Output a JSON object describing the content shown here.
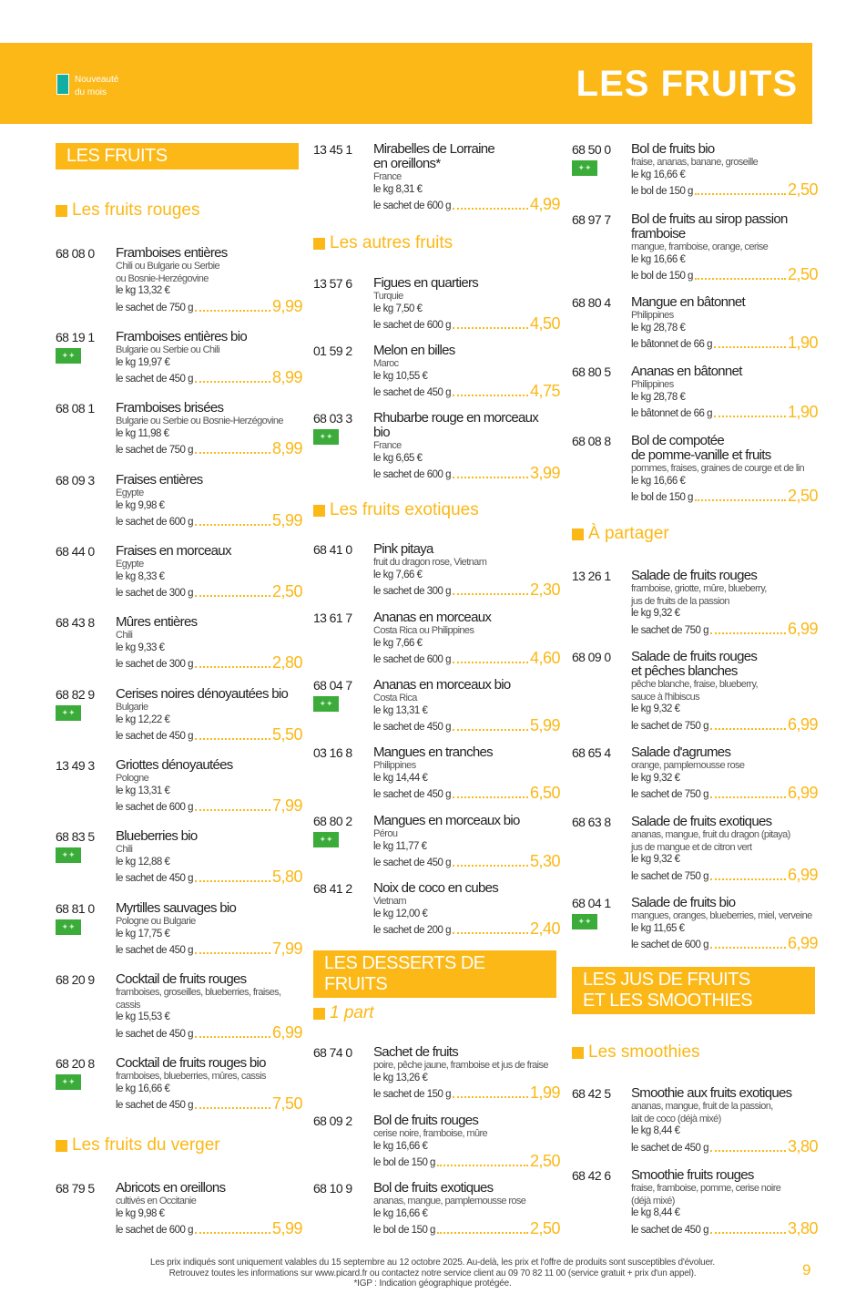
{
  "header": {
    "legend": "Nouveauté\ndu mois",
    "title": "LES FRUITS",
    "legend_color": "#10aea4",
    "accent": "#fbb816"
  },
  "columns": [
    {
      "blocks": [
        {
          "type": "banner",
          "text": "LES FRUITS"
        },
        {
          "type": "section",
          "text": "Les fruits rouges"
        },
        {
          "type": "item",
          "code": "68 08 0",
          "name": "Framboises entières",
          "details": [
            "Chili ou Bulgarie ou Serbie",
            "ou Bosnie-Herzégovine"
          ],
          "kg": "le kg 13,32 €",
          "unit": "le sachet de 750 g",
          "price": "9,99"
        },
        {
          "type": "item",
          "code": "68 19 1",
          "bio": true,
          "name": "Framboises entières bio",
          "details": [
            "Bulgarie ou Serbie ou Chili"
          ],
          "kg": "le kg 19,97 €",
          "unit": "le sachet de 450 g",
          "price": "8,99"
        },
        {
          "type": "item",
          "code": "68 08 1",
          "name": "Framboises brisées",
          "details": [
            "Bulgarie ou Serbie ou Bosnie-Herzégovine"
          ],
          "kg": "le kg 11,98 €",
          "unit": "le sachet de 750 g",
          "price": "8,99"
        },
        {
          "type": "item",
          "code": "68 09 3",
          "name": "Fraises entières",
          "details": [
            "Egypte"
          ],
          "kg": "le kg 9,98 €",
          "unit": "le sachet de 600 g",
          "price": "5,99"
        },
        {
          "type": "item",
          "code": "68 44 0",
          "name": "Fraises en morceaux",
          "details": [
            "Egypte"
          ],
          "kg": "le kg 8,33 €",
          "unit": "le sachet de 300 g",
          "price": "2,50"
        },
        {
          "type": "item",
          "code": "68 43 8",
          "name": "Mûres entières",
          "details": [
            "Chili"
          ],
          "kg": "le kg 9,33 €",
          "unit": "le sachet de 300 g",
          "price": "2,80"
        },
        {
          "type": "item",
          "code": "68 82 9",
          "bio": true,
          "name": "Cerises noires dénoyautées bio",
          "details": [
            "Bulgarie"
          ],
          "kg": "le kg 12,22 €",
          "unit": "le sachet de 450 g",
          "price": "5,50"
        },
        {
          "type": "item",
          "code": "13 49 3",
          "name": "Griottes dénoyautées",
          "details": [
            "Pologne"
          ],
          "kg": "le kg 13,31 €",
          "unit": "le sachet de 600 g",
          "price": "7,99"
        },
        {
          "type": "item",
          "code": "68 83 5",
          "bio": true,
          "name": "Blueberries bio",
          "details": [
            "Chili"
          ],
          "kg": "le kg 12,88 €",
          "unit": "le sachet de 450 g",
          "price": "5,80"
        },
        {
          "type": "item",
          "code": "68 81 0",
          "bio": true,
          "name": "Myrtilles sauvages bio",
          "details": [
            "Pologne ou Bulgarie"
          ],
          "kg": "le kg 17,75 €",
          "unit": "le sachet de 450 g",
          "price": "7,99"
        },
        {
          "type": "item",
          "code": "68 20 9",
          "name": "Cocktail de fruits rouges",
          "details": [
            "framboises, groseilles, blueberries, fraises,",
            "cassis"
          ],
          "kg": "le kg 15,53 €",
          "unit": "le sachet de 450 g",
          "price": "6,99"
        },
        {
          "type": "item",
          "code": "68 20 8",
          "bio": true,
          "name": "Cocktail de fruits rouges bio",
          "details": [
            "framboises, blueberries, mûres, cassis"
          ],
          "kg": "le kg 16,66 €",
          "unit": "le sachet de 450 g",
          "price": "7,50"
        },
        {
          "type": "section",
          "text": "Les fruits du verger"
        },
        {
          "type": "item",
          "code": "68 79 5",
          "name": "Abricots en oreillons",
          "details": [
            "cultivés en Occitanie"
          ],
          "kg": "le kg 9,98 €",
          "unit": "le sachet de 600 g",
          "price": "5,99"
        }
      ]
    },
    {
      "blocks": [
        {
          "type": "item",
          "code": "13 45 1",
          "name": "Mirabelles de Lorraine\nen oreillons*",
          "details": [
            "France"
          ],
          "kg": "le kg 8,31 €",
          "unit": "le sachet de 600 g",
          "price": "4,99"
        },
        {
          "type": "section",
          "text": "Les autres fruits"
        },
        {
          "type": "item",
          "code": "13 57 6",
          "name": "Figues en quartiers",
          "details": [
            "Turquie"
          ],
          "kg": "le kg 7,50 €",
          "unit": "le sachet de 600 g",
          "price": "4,50"
        },
        {
          "type": "item",
          "code": "01 59 2",
          "name": "Melon en billes",
          "details": [
            "Maroc"
          ],
          "kg": "le kg 10,55 €",
          "unit": "le sachet de 450 g",
          "price": "4,75"
        },
        {
          "type": "item",
          "code": "68 03 3",
          "bio": true,
          "name": "Rhubarbe rouge en morceaux\nbio",
          "details": [
            "France"
          ],
          "kg": "le kg 6,65 €",
          "unit": "le sachet de 600 g",
          "price": "3,99"
        },
        {
          "type": "section",
          "text": "Les fruits exotiques"
        },
        {
          "type": "item",
          "code": "68 41 0",
          "name": "Pink pitaya",
          "details": [
            "fruit du dragon rose, Vietnam"
          ],
          "kg": "le kg 7,66 €",
          "unit": "le sachet de 300 g",
          "price": "2,30"
        },
        {
          "type": "item",
          "code": "13 61 7",
          "name": "Ananas en morceaux",
          "details": [
            "Costa Rica ou Philippines"
          ],
          "kg": "le kg 7,66 €",
          "unit": "le sachet de 600 g",
          "price": "4,60"
        },
        {
          "type": "item",
          "code": "68 04 7",
          "bio": true,
          "name": "Ananas en morceaux bio",
          "details": [
            "Costa Rica"
          ],
          "kg": "le kg 13,31 €",
          "unit": "le sachet de 450 g",
          "price": "5,99"
        },
        {
          "type": "item",
          "code": "03 16 8",
          "name": "Mangues en tranches",
          "details": [
            "Philippines"
          ],
          "kg": "le kg 14,44 €",
          "unit": "le sachet de 450 g",
          "price": "6,50"
        },
        {
          "type": "item",
          "code": "68 80 2",
          "bio": true,
          "name": "Mangues en morceaux bio",
          "details": [
            "Pérou"
          ],
          "kg": "le kg 11,77 €",
          "unit": "le sachet de 450 g",
          "price": "5,30"
        },
        {
          "type": "item",
          "code": "68 41 2",
          "name": "Noix de coco en cubes",
          "details": [
            "Vietnam"
          ],
          "kg": "le kg 12,00 €",
          "unit": "le sachet de 200 g",
          "price": "2,40"
        },
        {
          "type": "banner",
          "text": "LES DESSERTS DE FRUITS"
        },
        {
          "type": "section",
          "text": "1 part",
          "italic": true
        },
        {
          "type": "item",
          "code": "68 74 0",
          "name": "Sachet de fruits",
          "details": [
            "poire, pêche jaune, framboise et jus de fraise"
          ],
          "kg": "le kg 13,26 €",
          "unit": "le sachet de 150 g",
          "price": "1,99"
        },
        {
          "type": "item",
          "code": "68 09 2",
          "name": "Bol de fruits rouges",
          "details": [
            "cerise noire, framboise, mûre"
          ],
          "kg": "le kg 16,66 €",
          "unit": "le bol de 150 g",
          "price": "2,50"
        },
        {
          "type": "item",
          "code": "68 10 9",
          "name": "Bol de fruits exotiques",
          "details": [
            "ananas, mangue, pamplemousse rose"
          ],
          "kg": "le kg 16,66 €",
          "unit": "le bol de 150 g",
          "price": "2,50"
        }
      ]
    },
    {
      "blocks": [
        {
          "type": "item",
          "code": "68 50 0",
          "bio": true,
          "name": "Bol de fruits bio",
          "details": [
            "fraise, ananas, banane, groseille"
          ],
          "kg": "le kg 16,66 €",
          "unit": "le bol de 150 g",
          "price": "2,50"
        },
        {
          "type": "item",
          "code": "68 97 7",
          "name": "Bol de fruits au sirop passion\nframboise",
          "details": [
            "mangue, framboise, orange, cerise"
          ],
          "kg": "le kg 16,66 €",
          "unit": "le bol de 150 g",
          "price": "2,50"
        },
        {
          "type": "item",
          "code": "68 80 4",
          "name": "Mangue en bâtonnet",
          "details": [
            "Philippines"
          ],
          "kg": "le kg 28,78 €",
          "unit": "le bâtonnet de 66 g",
          "price": "1,90"
        },
        {
          "type": "item",
          "code": "68 80 5",
          "name": "Ananas en bâtonnet",
          "details": [
            "Philippines"
          ],
          "kg": "le kg 28,78 €",
          "unit": "le bâtonnet de 66 g",
          "price": "1,90"
        },
        {
          "type": "item",
          "code": "68 08 8",
          "name": "Bol de compotée\nde pomme-vanille et fruits",
          "details": [
            "pommes, fraises, graines de courge et de lin"
          ],
          "kg": "le kg 16,66 €",
          "unit": "le bol de 150 g",
          "price": "2,50"
        },
        {
          "type": "section",
          "text": "À partager"
        },
        {
          "type": "item",
          "code": "13 26 1",
          "name": "Salade de fruits rouges",
          "details": [
            "framboise, griotte, mûre, blueberry,",
            "jus de fruits de la passion"
          ],
          "kg": "le kg 9,32 €",
          "unit": "le sachet de 750 g",
          "price": "6,99"
        },
        {
          "type": "item",
          "code": "68 09 0",
          "name": "Salade de fruits rouges\net pêches blanches",
          "details": [
            "pêche blanche, fraise, blueberry,",
            "sauce à l'hibiscus"
          ],
          "kg": "le kg 9,32 €",
          "unit": "le sachet de 750 g",
          "price": "6,99"
        },
        {
          "type": "item",
          "code": "68 65 4",
          "name": "Salade d'agrumes",
          "details": [
            "orange, pamplemousse rose"
          ],
          "kg": "le kg 9,32 €",
          "unit": "le sachet de 750 g",
          "price": "6,99"
        },
        {
          "type": "item",
          "code": "68 63 8",
          "name": "Salade de fruits exotiques",
          "details": [
            "ananas, mangue, fruit du dragon (pitaya)",
            "jus de mangue et de citron vert"
          ],
          "kg": "le kg 9,32 €",
          "unit": "le sachet de 750 g",
          "price": "6,99"
        },
        {
          "type": "item",
          "code": "68 04 1",
          "bio": true,
          "name": "Salade de fruits bio",
          "details": [
            "mangues, oranges, blueberries, miel, verveine"
          ],
          "kg": "le kg 11,65 €",
          "unit": "le sachet de 600 g",
          "price": "6,99"
        },
        {
          "type": "banner",
          "text": "LES JUS DE FRUITS\nET LES SMOOTHIES"
        },
        {
          "type": "section",
          "text": "Les smoothies"
        },
        {
          "type": "item",
          "code": "68 42 5",
          "name": "Smoothie aux fruits exotiques",
          "details": [
            "ananas, mangue, fruit de la passion,",
            "lait de coco (déjà mixé)"
          ],
          "kg": "le kg 8,44 €",
          "unit": "le sachet de 450 g",
          "price": "3,80"
        },
        {
          "type": "item",
          "code": "68 42 6",
          "name": "Smoothie fruits rouges",
          "details": [
            "fraise, framboise, pomme, cerise noire",
            "(déjà mixé)"
          ],
          "kg": "le kg 8,44 €",
          "unit": "le sachet de 450 g",
          "price": "3,80"
        }
      ]
    }
  ],
  "footer": {
    "text": "Les prix indiqués sont uniquement valables du 15 septembre au 12 octobre 2025. Au-delà, les prix et l'offre de produits sont susceptibles d'évoluer.\nRetrouvez toutes les informations sur www.picard.fr ou contactez notre service client au 09 70 82 11 00 (service gratuit + prix d'un appel).\n*IGP : Indication géographique protégée.",
    "page": "9"
  }
}
